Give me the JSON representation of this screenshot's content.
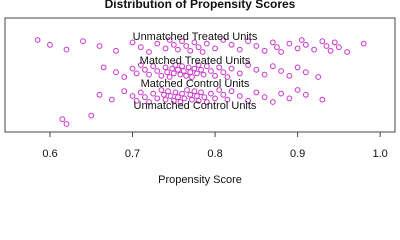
{
  "chart_data": {
    "type": "scatter",
    "title": "Distribution of Propensity Scores",
    "xlabel": "Propensity Score",
    "xlim": [
      0.5455,
      1.018
    ],
    "xticks": [
      0.6,
      0.7,
      0.8,
      0.9,
      {
        "value": 1.0,
        "label": "1.0"
      }
    ],
    "marker_color": "#cc33cc",
    "series": [
      {
        "name": "Unmatched Treated Units",
        "values": [
          0.585,
          0.6,
          0.62,
          0.64,
          0.66,
          0.68,
          0.7,
          0.71,
          0.72,
          0.73,
          0.74,
          0.745,
          0.75,
          0.755,
          0.76,
          0.765,
          0.77,
          0.775,
          0.78,
          0.785,
          0.79,
          0.8,
          0.81,
          0.82,
          0.83,
          0.84,
          0.85,
          0.86,
          0.87,
          0.875,
          0.88,
          0.89,
          0.9,
          0.905,
          0.91,
          0.92,
          0.93,
          0.935,
          0.94,
          0.945,
          0.95,
          0.96,
          0.98
        ]
      },
      {
        "name": "Matched Treated Units",
        "values": [
          0.665,
          0.68,
          0.69,
          0.7,
          0.705,
          0.71,
          0.715,
          0.72,
          0.725,
          0.73,
          0.735,
          0.74,
          0.742,
          0.745,
          0.748,
          0.75,
          0.752,
          0.755,
          0.758,
          0.76,
          0.762,
          0.765,
          0.768,
          0.77,
          0.772,
          0.775,
          0.778,
          0.78,
          0.783,
          0.786,
          0.79,
          0.795,
          0.8,
          0.805,
          0.81,
          0.815,
          0.82,
          0.83,
          0.84,
          0.85,
          0.86,
          0.87,
          0.88,
          0.89,
          0.9,
          0.91,
          0.925
        ]
      },
      {
        "name": "Matched Control Units",
        "values": [
          0.66,
          0.675,
          0.69,
          0.7,
          0.705,
          0.71,
          0.715,
          0.72,
          0.725,
          0.73,
          0.735,
          0.738,
          0.74,
          0.743,
          0.746,
          0.75,
          0.752,
          0.755,
          0.758,
          0.76,
          0.763,
          0.766,
          0.77,
          0.772,
          0.775,
          0.778,
          0.78,
          0.783,
          0.787,
          0.79,
          0.795,
          0.8,
          0.805,
          0.81,
          0.815,
          0.82,
          0.83,
          0.84,
          0.85,
          0.86,
          0.87,
          0.88,
          0.89,
          0.9,
          0.91,
          0.93
        ]
      },
      {
        "name": "Unmatched Control Units",
        "values": [
          0.615,
          0.62,
          0.65
        ]
      }
    ]
  }
}
